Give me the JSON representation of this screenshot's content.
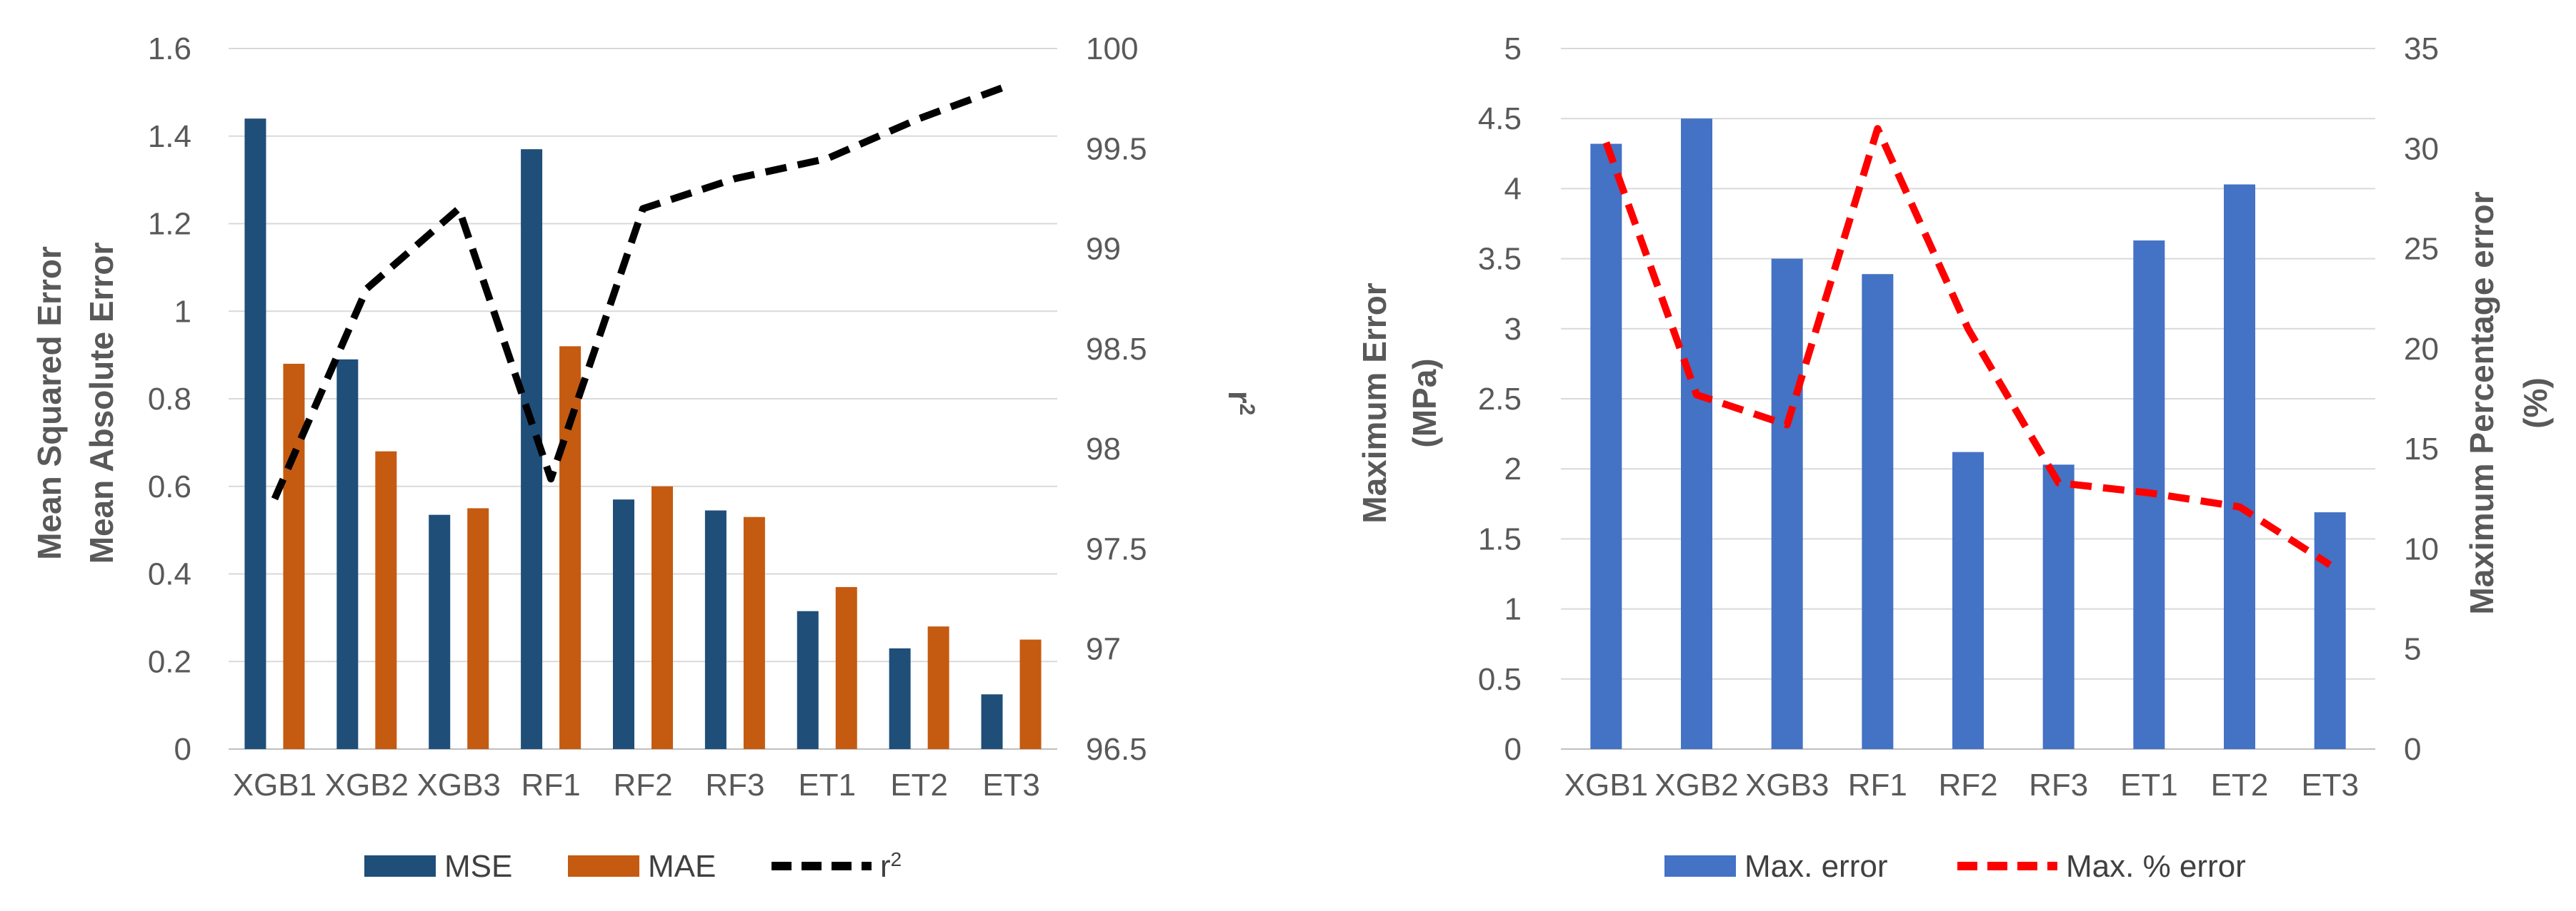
{
  "chart_data": [
    {
      "type": "bar+line",
      "categories": [
        "XGB1",
        "XGB2",
        "XGB3",
        "RF1",
        "RF2",
        "RF3",
        "ET1",
        "ET2",
        "ET3"
      ],
      "series": [
        {
          "name": "MSE",
          "kind": "bar",
          "axis": "left",
          "color": "#1f4e79",
          "values": [
            1.44,
            0.89,
            0.535,
            1.37,
            0.57,
            0.545,
            0.315,
            0.23,
            0.125
          ]
        },
        {
          "name": "MAE",
          "kind": "bar",
          "axis": "left",
          "color": "#c55a11",
          "values": [
            0.88,
            0.68,
            0.55,
            0.92,
            0.6,
            0.53,
            0.37,
            0.28,
            0.25
          ]
        },
        {
          "name": "r",
          "name_sup": "2",
          "kind": "line",
          "axis": "right",
          "color": "#000000",
          "dash": true,
          "values": [
            97.75,
            98.8,
            99.2,
            97.85,
            99.2,
            99.35,
            99.45,
            99.65,
            99.82
          ]
        }
      ],
      "ylabel_left": [
        "Mean Squared Error",
        "Mean Absolute Error"
      ],
      "ylabel_right": {
        "base": "r",
        "sup": "2"
      },
      "ylim_left": [
        0,
        1.6
      ],
      "yticks_left": [
        "0",
        "0.2",
        "0.4",
        "0.6",
        "0.8",
        "1",
        "1.2",
        "1.4",
        "1.6"
      ],
      "ylim_right": [
        96.5,
        100
      ],
      "yticks_right": [
        "96.5",
        "97",
        "97.5",
        "98",
        "98.5",
        "99",
        "99.5",
        "100"
      ],
      "grid": true,
      "legend": "bottom"
    },
    {
      "type": "bar+line",
      "categories": [
        "XGB1",
        "XGB2",
        "XGB3",
        "RF1",
        "RF2",
        "RF3",
        "ET1",
        "ET2",
        "ET3"
      ],
      "series": [
        {
          "name": "Max. error",
          "kind": "bar",
          "axis": "left",
          "color": "#4472c4",
          "values": [
            4.32,
            4.5,
            3.5,
            3.39,
            2.12,
            2.03,
            3.63,
            4.03,
            1.69
          ]
        },
        {
          "name": "Max. % error",
          "kind": "line",
          "axis": "right",
          "color": "#ff0000",
          "dash": true,
          "values": [
            30.3,
            17.7,
            16.2,
            31.0,
            21.0,
            13.3,
            12.8,
            12.1,
            9.2
          ]
        }
      ],
      "ylabel_left": [
        "Maximum Error",
        "(MPa)"
      ],
      "ylabel_right": [
        "Maximum Percentage error",
        "(%)"
      ],
      "ylim_left": [
        0,
        5
      ],
      "yticks_left": [
        "0",
        "0.5",
        "1",
        "1.5",
        "2",
        "2.5",
        "3",
        "3.5",
        "4",
        "4.5",
        "5"
      ],
      "ylim_right": [
        0,
        35
      ],
      "yticks_right": [
        "0",
        "5",
        "10",
        "15",
        "20",
        "25",
        "30",
        "35"
      ],
      "grid": true,
      "legend": "bottom"
    }
  ]
}
